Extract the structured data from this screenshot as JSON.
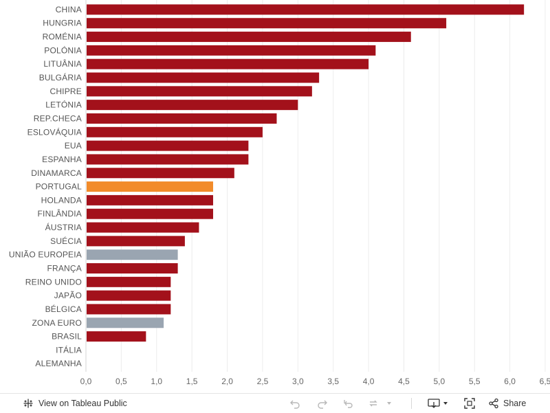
{
  "chart_data": {
    "type": "bar",
    "orientation": "horizontal",
    "title": "",
    "xlabel": "",
    "ylabel": "",
    "xlim": [
      0,
      6.5
    ],
    "grid": true,
    "categories": [
      "CHINA",
      "HUNGRIA",
      "ROMÉNIA",
      "POLÓNIA",
      "LITUÂNIA",
      "BULGÁRIA",
      "CHIPRE",
      "LETÓNIA",
      "REP.CHECA",
      "ESLOVÁQUIA",
      "EUA",
      "ESPANHA",
      "DINAMARCA",
      "PORTUGAL",
      "HOLANDA",
      "FINLÂNDIA",
      "ÁUSTRIA",
      "SUÉCIA",
      "UNIÃO EUROPEIA",
      "FRANÇA",
      "REINO UNIDO",
      "JAPÃO",
      "BÉLGICA",
      "ZONA EURO",
      "BRASIL",
      "ITÁLIA",
      "ALEMANHA"
    ],
    "values": [
      6.2,
      5.1,
      4.6,
      4.1,
      4.0,
      3.3,
      3.2,
      3.0,
      2.7,
      2.5,
      2.3,
      2.3,
      2.1,
      1.8,
      1.8,
      1.8,
      1.6,
      1.4,
      1.3,
      1.3,
      1.2,
      1.2,
      1.2,
      1.1,
      0.85,
      0,
      0
    ],
    "highlight": {
      "PORTUGAL": "portugal",
      "UNIÃO EUROPEIA": "aggregate",
      "ZONA EURO": "aggregate"
    },
    "x_ticks": [
      "0,0",
      "0,5",
      "1,0",
      "1,5",
      "2,0",
      "2,5",
      "3,0",
      "3,5",
      "4,0",
      "4,5",
      "5,0",
      "5,5",
      "6,0",
      "6,5"
    ],
    "x_tick_values": [
      0,
      0.5,
      1,
      1.5,
      2,
      2.5,
      3,
      3.5,
      4,
      4.5,
      5,
      5.5,
      6,
      6.5
    ]
  },
  "colors": {
    "default_bar": "#a3111b",
    "portugal": "#f28b2a",
    "aggregate": "#9aa5b1"
  },
  "toolbar": {
    "view_label": "View on Tableau Public",
    "share_label": "Share"
  }
}
